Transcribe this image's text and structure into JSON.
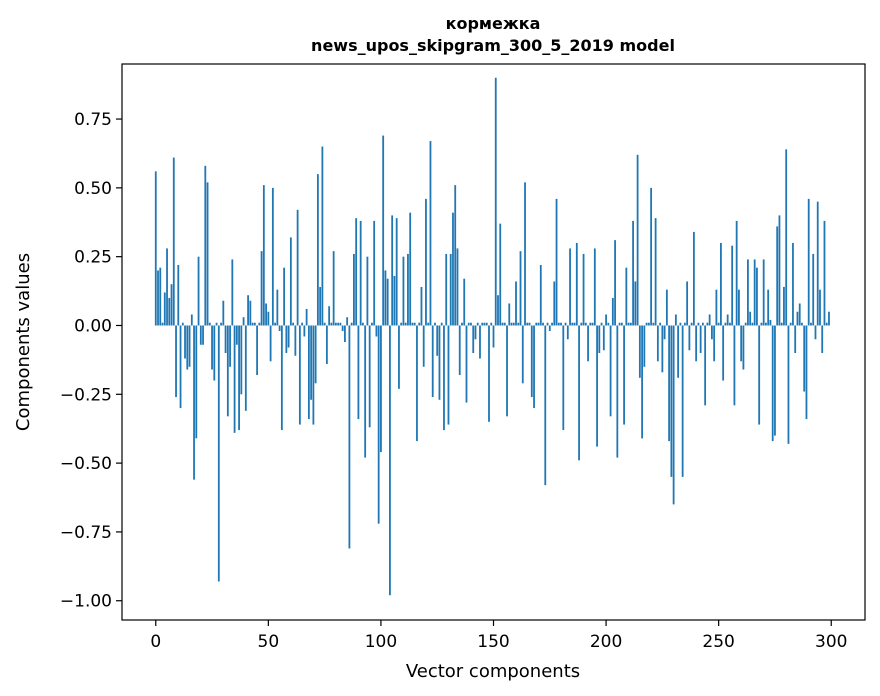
{
  "chart_data": {
    "type": "bar",
    "title": "кормежка",
    "subtitle": "news_upos_skipgram_300_5_2019 model",
    "xlabel": "Vector components",
    "ylabel": "Components values",
    "xlim": [
      -15,
      315
    ],
    "ylim": [
      -1.07,
      0.95
    ],
    "xticks": [
      0,
      50,
      100,
      150,
      200,
      250,
      300
    ],
    "xtick_labels": [
      "0",
      "50",
      "100",
      "150",
      "200",
      "250",
      "300"
    ],
    "yticks": [
      0.75,
      0.5,
      0.25,
      0.0,
      -0.25,
      -0.5,
      -0.75,
      -1.0
    ],
    "ytick_labels": [
      "0.75",
      "0.50",
      "0.25",
      "0.00",
      "−0.25",
      "−0.50",
      "−0.75",
      "−1.00"
    ],
    "bar_color": "#1f77b4",
    "categories_start": 0,
    "values": [
      0.56,
      0.2,
      0.21,
      0.01,
      0.12,
      0.28,
      0.1,
      0.15,
      0.61,
      -0.26,
      0.22,
      -0.3,
      0.01,
      -0.12,
      -0.16,
      -0.15,
      0.04,
      -0.56,
      -0.41,
      0.25,
      -0.07,
      -0.07,
      0.58,
      0.52,
      0.01,
      -0.16,
      -0.2,
      0.01,
      -0.93,
      0.01,
      0.09,
      -0.1,
      -0.33,
      -0.15,
      0.24,
      -0.39,
      -0.07,
      -0.38,
      -0.25,
      0.03,
      -0.31,
      0.11,
      0.09,
      0.01,
      0.01,
      -0.18,
      0.01,
      0.27,
      0.51,
      0.08,
      0.05,
      -0.13,
      0.5,
      0.01,
      0.13,
      -0.02,
      -0.38,
      0.21,
      -0.1,
      -0.08,
      0.32,
      0.01,
      -0.11,
      0.42,
      -0.36,
      0.01,
      -0.04,
      0.06,
      -0.34,
      -0.27,
      -0.36,
      -0.21,
      0.55,
      0.14,
      0.65,
      0.01,
      -0.14,
      0.07,
      0.01,
      0.27,
      0.01,
      0.01,
      0.01,
      -0.02,
      -0.06,
      0.03,
      -0.81,
      0.01,
      0.26,
      0.39,
      -0.34,
      0.38,
      0.01,
      -0.48,
      0.25,
      -0.37,
      0.01,
      0.38,
      -0.04,
      -0.72,
      -0.46,
      0.69,
      0.2,
      0.17,
      -0.98,
      0.4,
      0.18,
      0.39,
      -0.23,
      0.01,
      0.25,
      0.01,
      0.26,
      0.41,
      0.01,
      0.01,
      -0.42,
      0.01,
      0.14,
      -0.15,
      0.46,
      0.01,
      0.67,
      -0.26,
      0.01,
      -0.11,
      -0.27,
      0.01,
      -0.38,
      0.26,
      -0.36,
      0.26,
      0.41,
      0.51,
      0.28,
      -0.18,
      0.01,
      0.17,
      -0.28,
      0.01,
      0.01,
      -0.1,
      -0.05,
      0.01,
      -0.12,
      0.01,
      0.01,
      0.01,
      -0.35,
      0.01,
      -0.08,
      0.9,
      0.11,
      0.37,
      0.01,
      0.01,
      -0.33,
      0.08,
      0.01,
      0.01,
      0.16,
      0.01,
      0.27,
      -0.21,
      0.52,
      0.01,
      0.01,
      -0.26,
      -0.3,
      0.01,
      0.01,
      0.22,
      0.01,
      -0.58,
      0.01,
      -0.02,
      0.01,
      0.16,
      0.46,
      0.01,
      0.01,
      -0.38,
      0.01,
      -0.05,
      0.28,
      0.01,
      0.01,
      0.3,
      -0.49,
      0.01,
      0.26,
      0.01,
      -0.13,
      0.01,
      0.01,
      0.28,
      -0.44,
      -0.1,
      0.01,
      -0.09,
      0.04,
      0.01,
      -0.33,
      0.1,
      0.31,
      -0.48,
      0.01,
      0.01,
      -0.36,
      0.21,
      0.01,
      0.01,
      0.38,
      0.16,
      0.62,
      -0.19,
      -0.41,
      -0.15,
      0.01,
      0.01,
      0.5,
      0.01,
      0.39,
      -0.13,
      0.01,
      -0.17,
      -0.05,
      0.13,
      -0.42,
      -0.55,
      -0.65,
      0.04,
      -0.19,
      0.01,
      -0.55,
      0.01,
      0.16,
      -0.09,
      0.01,
      0.34,
      -0.13,
      0.01,
      -0.1,
      0.01,
      -0.29,
      0.01,
      0.04,
      -0.05,
      -0.13,
      0.13,
      0.01,
      0.3,
      -0.2,
      0.01,
      0.04,
      0.01,
      0.29,
      -0.29,
      0.38,
      0.13,
      -0.13,
      -0.16,
      0.01,
      0.24,
      0.05,
      0.01,
      0.24,
      0.21,
      -0.36,
      0.01,
      0.24,
      0.01,
      0.13,
      0.02,
      -0.42,
      -0.4,
      0.36,
      0.4,
      0.01,
      0.14,
      0.64,
      -0.43,
      0.01,
      0.3,
      -0.1,
      0.05,
      0.08,
      0.01,
      -0.24,
      -0.34,
      0.46,
      0.01,
      0.26,
      -0.05,
      0.45,
      0.13,
      -0.1,
      0.38,
      0.01,
      0.05
    ]
  }
}
